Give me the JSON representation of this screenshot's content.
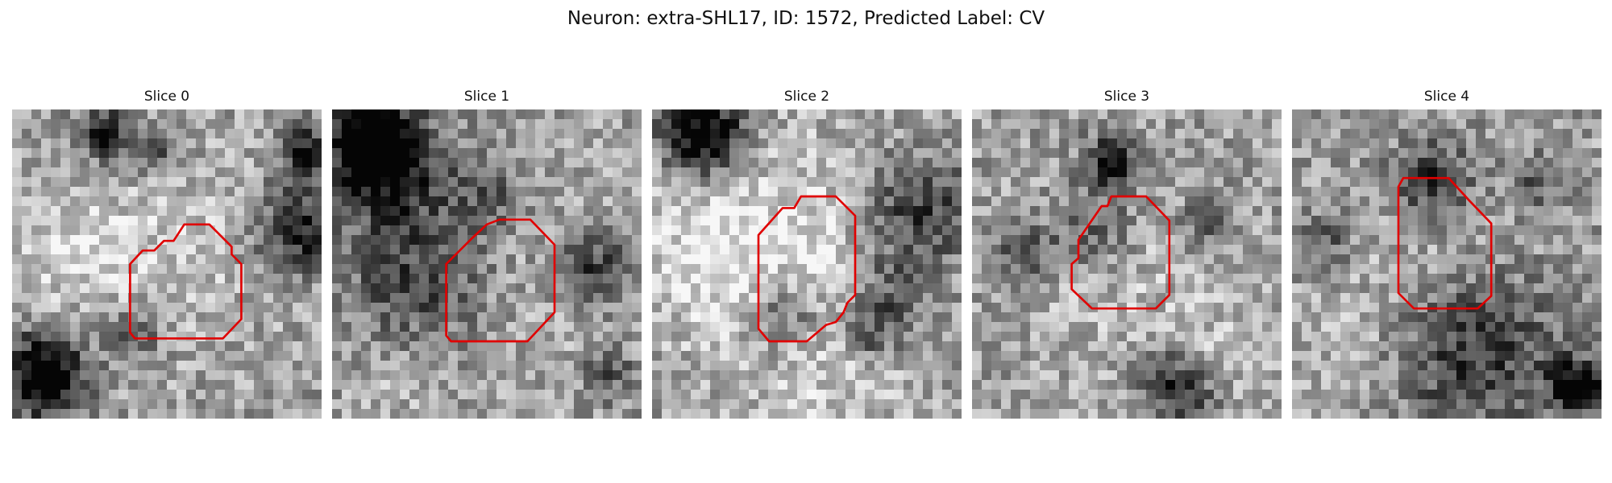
{
  "figure": {
    "title": "Neuron: extra-SHL17, ID: 1572, Predicted Label: CV",
    "contour_color": "#e00000",
    "grid_size": 32
  },
  "slices": [
    {
      "title": "Slice 0",
      "dark_blobs": [
        [
          9,
          2,
          2,
          0.55
        ],
        [
          30,
          4,
          2,
          0.55
        ],
        [
          29,
          12,
          3,
          0.55
        ],
        [
          3,
          27,
          3,
          0.8
        ],
        [
          12,
          23,
          2,
          0.3
        ],
        [
          15,
          4,
          2,
          0.3
        ]
      ],
      "light_blobs": [
        [
          15,
          13,
          8,
          0.15
        ],
        [
          5,
          15,
          4,
          0.15
        ]
      ],
      "contour": [
        [
          17.8,
          11.9
        ],
        [
          20.4,
          11.9
        ],
        [
          22.7,
          14.2
        ],
        [
          22.7,
          15.0
        ],
        [
          23.7,
          16.0
        ],
        [
          23.7,
          21.7
        ],
        [
          21.8,
          23.7
        ],
        [
          12.7,
          23.7
        ],
        [
          12.2,
          23.1
        ],
        [
          12.2,
          16.0
        ],
        [
          13.5,
          14.6
        ],
        [
          14.7,
          14.6
        ],
        [
          15.7,
          13.6
        ],
        [
          16.7,
          13.6
        ]
      ]
    },
    {
      "title": "Slice 1",
      "dark_blobs": [
        [
          5,
          5,
          4,
          0.6
        ],
        [
          3,
          2,
          3,
          0.5
        ],
        [
          9,
          17,
          6,
          0.4
        ],
        [
          26,
          16,
          3,
          0.45
        ],
        [
          16,
          8,
          3,
          0.25
        ],
        [
          28,
          27,
          2,
          0.3
        ]
      ],
      "light_blobs": [
        [
          18,
          17,
          8,
          0.15
        ],
        [
          6,
          27,
          4,
          0.1
        ]
      ],
      "contour": [
        [
          17.3,
          11.4
        ],
        [
          20.5,
          11.4
        ],
        [
          23.0,
          14.0
        ],
        [
          23.0,
          21.0
        ],
        [
          20.2,
          24.0
        ],
        [
          12.3,
          24.0
        ],
        [
          11.8,
          23.4
        ],
        [
          11.8,
          16.0
        ],
        [
          14.5,
          13.3
        ],
        [
          16.0,
          11.9
        ]
      ]
    },
    {
      "title": "Slice 2",
      "dark_blobs": [
        [
          5,
          2,
          3,
          0.75
        ],
        [
          27,
          10,
          4,
          0.45
        ],
        [
          24,
          19,
          3,
          0.35
        ],
        [
          13,
          21,
          3,
          0.35
        ],
        [
          22,
          23,
          2,
          0.3
        ]
      ],
      "light_blobs": [
        [
          14,
          14,
          9,
          0.22
        ],
        [
          5,
          15,
          5,
          0.18
        ],
        [
          17,
          27,
          6,
          0.12
        ]
      ],
      "contour": [
        [
          15.4,
          9.0
        ],
        [
          19.0,
          9.0
        ],
        [
          21.0,
          11.0
        ],
        [
          21.0,
          19.2
        ],
        [
          20.2,
          20.0
        ],
        [
          19.8,
          21.0
        ],
        [
          19.0,
          22.0
        ],
        [
          18.0,
          22.3
        ],
        [
          16.0,
          24.0
        ],
        [
          15.0,
          24.0
        ],
        [
          12.1,
          24.0
        ],
        [
          11.0,
          22.7
        ],
        [
          11.0,
          13.0
        ],
        [
          13.5,
          10.2
        ],
        [
          14.7,
          10.2
        ]
      ]
    },
    {
      "title": "Slice 3",
      "dark_blobs": [
        [
          14,
          5,
          2,
          0.6
        ],
        [
          5,
          14,
          2,
          0.35
        ],
        [
          12,
          12,
          3,
          0.3
        ],
        [
          19,
          27,
          2,
          0.35
        ],
        [
          22,
          29,
          2,
          0.4
        ],
        [
          24,
          11,
          2,
          0.3
        ]
      ],
      "light_blobs": [
        [
          15,
          17,
          7,
          0.12
        ],
        [
          27,
          24,
          4,
          0.12
        ]
      ],
      "contour": [
        [
          14.4,
          9.0
        ],
        [
          18.0,
          9.0
        ],
        [
          20.4,
          11.5
        ],
        [
          20.4,
          19.2
        ],
        [
          19.0,
          20.6
        ],
        [
          12.4,
          20.6
        ],
        [
          10.3,
          18.6
        ],
        [
          10.3,
          16.0
        ],
        [
          11.0,
          15.4
        ],
        [
          11.0,
          13.5
        ],
        [
          13.4,
          10.0
        ],
        [
          14.0,
          10.0
        ]
      ]
    },
    {
      "title": "Slice 4",
      "dark_blobs": [
        [
          14,
          7,
          3,
          0.45
        ],
        [
          18,
          24,
          6,
          0.45
        ],
        [
          29,
          28,
          2,
          0.7
        ],
        [
          3,
          13,
          2,
          0.3
        ],
        [
          25,
          7,
          2,
          0.25
        ]
      ],
      "light_blobs": [
        [
          14,
          16,
          6,
          0.15
        ],
        [
          6,
          24,
          4,
          0.1
        ]
      ],
      "contour": [
        [
          11.5,
          7.1
        ],
        [
          16.2,
          7.1
        ],
        [
          18.3,
          9.4
        ],
        [
          20.6,
          11.8
        ],
        [
          20.6,
          19.3
        ],
        [
          19.2,
          20.6
        ],
        [
          12.6,
          20.6
        ],
        [
          11.0,
          19.0
        ],
        [
          11.0,
          8.0
        ]
      ]
    }
  ]
}
